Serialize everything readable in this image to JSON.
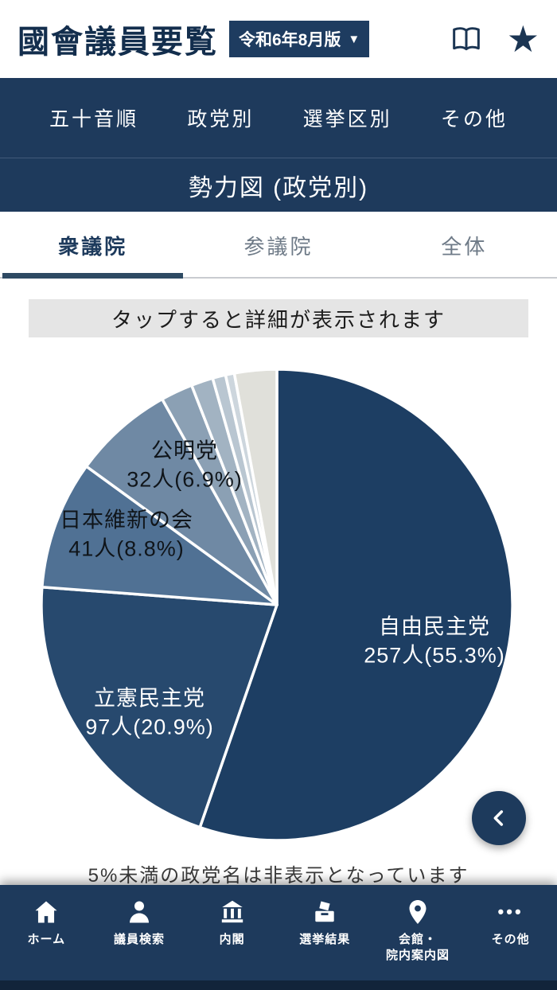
{
  "header": {
    "title": "國會議員要覧",
    "version_selector": {
      "label": "令和6年8月版",
      "arrow": "▼"
    },
    "icons": {
      "star": "★"
    }
  },
  "top_nav": {
    "items": [
      "五十音順",
      "政党別",
      "選挙区別",
      "その他"
    ]
  },
  "section": {
    "title": "勢力図 (政党別)"
  },
  "tabs": {
    "items": [
      {
        "label": "衆議院",
        "active": true
      },
      {
        "label": "参議院",
        "active": false
      },
      {
        "label": "全体",
        "active": false
      }
    ]
  },
  "notice": "タップすると詳細が表示されます",
  "chart_data": {
    "type": "pie",
    "title": "勢力図 (政党別) - 衆議院",
    "start_angle_deg": -90,
    "direction": "clockwise",
    "note": "5%未満の政党名は非表示となっています",
    "slices": [
      {
        "name": "自由民主党",
        "seats": 257,
        "pct": 55.3,
        "detail": "257人(55.3%)",
        "color": "#1d3e63",
        "label_visible": true
      },
      {
        "name": "立憲民主党",
        "seats": 97,
        "pct": 20.9,
        "detail": "97人(20.9%)",
        "color": "#27496e",
        "label_visible": true
      },
      {
        "name": "日本維新の会",
        "seats": 41,
        "pct": 8.8,
        "detail": "41人(8.8%)",
        "color": "#507194",
        "label_visible": true
      },
      {
        "name": "公明党",
        "seats": 32,
        "pct": 6.9,
        "detail": "32人(6.9%)",
        "color": "#6f89a4",
        "label_visible": true
      },
      {
        "name": "",
        "pct": 2.2,
        "detail": "",
        "color": "#8ba0b4",
        "label_visible": false
      },
      {
        "name": "",
        "pct": 1.5,
        "detail": "",
        "color": "#a2b3c2",
        "label_visible": false
      },
      {
        "name": "",
        "pct": 0.9,
        "detail": "",
        "color": "#b9c6d1",
        "label_visible": false
      },
      {
        "name": "",
        "pct": 0.6,
        "detail": "",
        "color": "#cdd6dd",
        "label_visible": false
      },
      {
        "name": "",
        "pct": 2.9,
        "detail": "",
        "color": "#e0e0da",
        "label_visible": false
      }
    ]
  },
  "bottom_nav": {
    "items": [
      {
        "label": "ホーム",
        "icon": "home-icon"
      },
      {
        "label": "議員検索",
        "icon": "member-search-icon"
      },
      {
        "label": "内閣",
        "icon": "cabinet-icon"
      },
      {
        "label": "選挙結果",
        "icon": "election-results-icon"
      },
      {
        "label": "会館・\n院内案内図",
        "icon": "building-guide-icon"
      },
      {
        "label": "その他",
        "icon": "more-icon",
        "glyph": "•••"
      }
    ]
  },
  "colors": {
    "primary_navy": "#1e3a5c",
    "tab_underline": "#2e4a63",
    "notice_bg": "#e5e5e5"
  }
}
